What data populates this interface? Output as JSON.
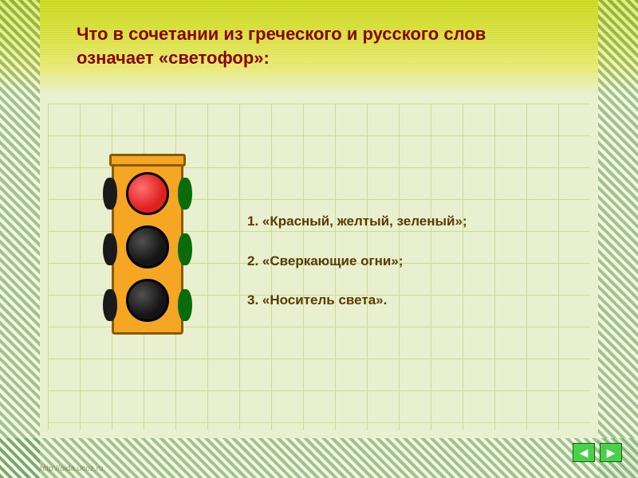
{
  "title": "Что в сочетании из греческого и русского слов означает «светофор»:",
  "answers": {
    "opt1": "1.  «Красный, желтый, зеленый»;",
    "opt2": "2.  «Сверкающие огни»;",
    "opt3": "3.  «Носитель света»."
  },
  "traffic_light": {
    "lights": [
      "red",
      "off",
      "off"
    ],
    "body_color": "#f5a623",
    "border_color": "#8a5a00"
  },
  "colors": {
    "title_color": "#8a0000",
    "answer_color": "#5a3a00",
    "bg": "#e8f0d0",
    "grid_line": "#b8d060",
    "top_gradient_from": "#c8d818",
    "top_gradient_to": "#e8f0d0",
    "nav_button": "#4ad04a"
  },
  "nav": {
    "prev_glyph": "◀",
    "next_glyph": "▶"
  },
  "footer_url": "http://aida.ucoz.ru"
}
